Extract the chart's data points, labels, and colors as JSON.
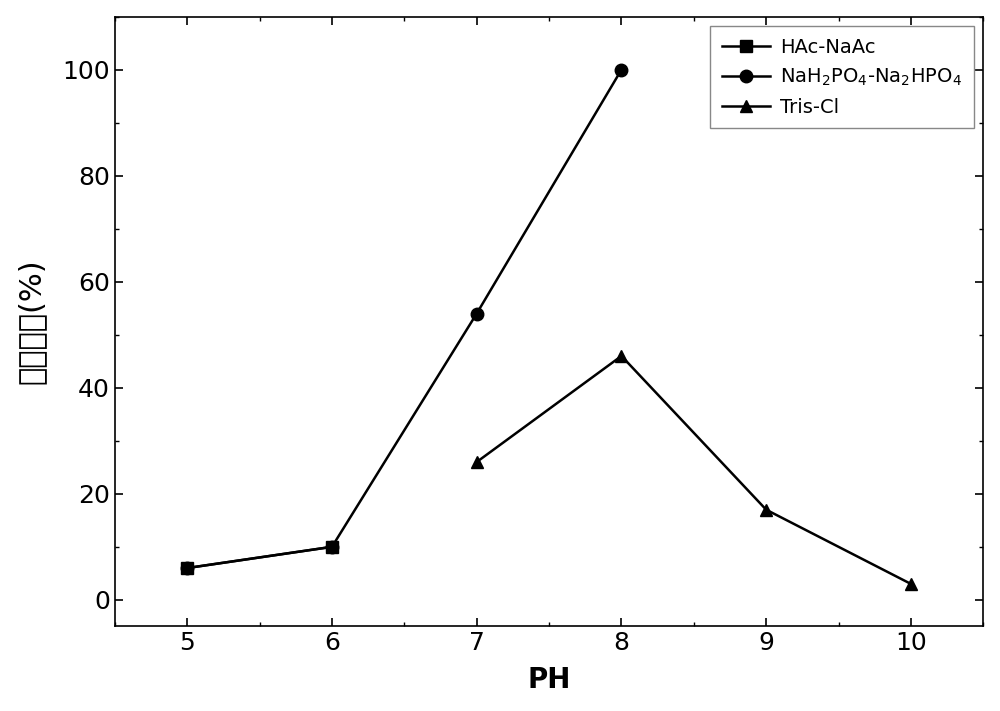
{
  "series": [
    {
      "label": "HAc-NaAc",
      "x": [
        5,
        6
      ],
      "y": [
        6,
        10
      ],
      "marker": "s",
      "markersize": 8,
      "color": "black"
    },
    {
      "label": "NaH$_2$PO$_4$-Na$_2$HPO$_4$",
      "x": [
        5,
        6,
        7,
        8
      ],
      "y": [
        6,
        10,
        54,
        100
      ],
      "marker": "o",
      "markersize": 9,
      "color": "black"
    },
    {
      "label": "Tris-Cl",
      "x": [
        7,
        8,
        9,
        10
      ],
      "y": [
        26,
        46,
        17,
        3
      ],
      "marker": "^",
      "markersize": 8,
      "color": "black"
    }
  ],
  "xlabel": "PH",
  "ylabel": "相对活性(%)",
  "xlim": [
    4.5,
    10.5
  ],
  "ylim": [
    -5,
    110
  ],
  "xticks": [
    5,
    6,
    7,
    8,
    9,
    10
  ],
  "yticks": [
    0,
    20,
    40,
    60,
    80,
    100
  ],
  "xlabel_fontsize": 20,
  "ylabel_fontsize": 22,
  "tick_fontsize": 18,
  "legend_fontsize": 14,
  "legend_loc": "upper right",
  "linewidth": 1.8,
  "background_color": "#ffffff",
  "figsize": [
    10.0,
    7.11
  ],
  "dpi": 100
}
